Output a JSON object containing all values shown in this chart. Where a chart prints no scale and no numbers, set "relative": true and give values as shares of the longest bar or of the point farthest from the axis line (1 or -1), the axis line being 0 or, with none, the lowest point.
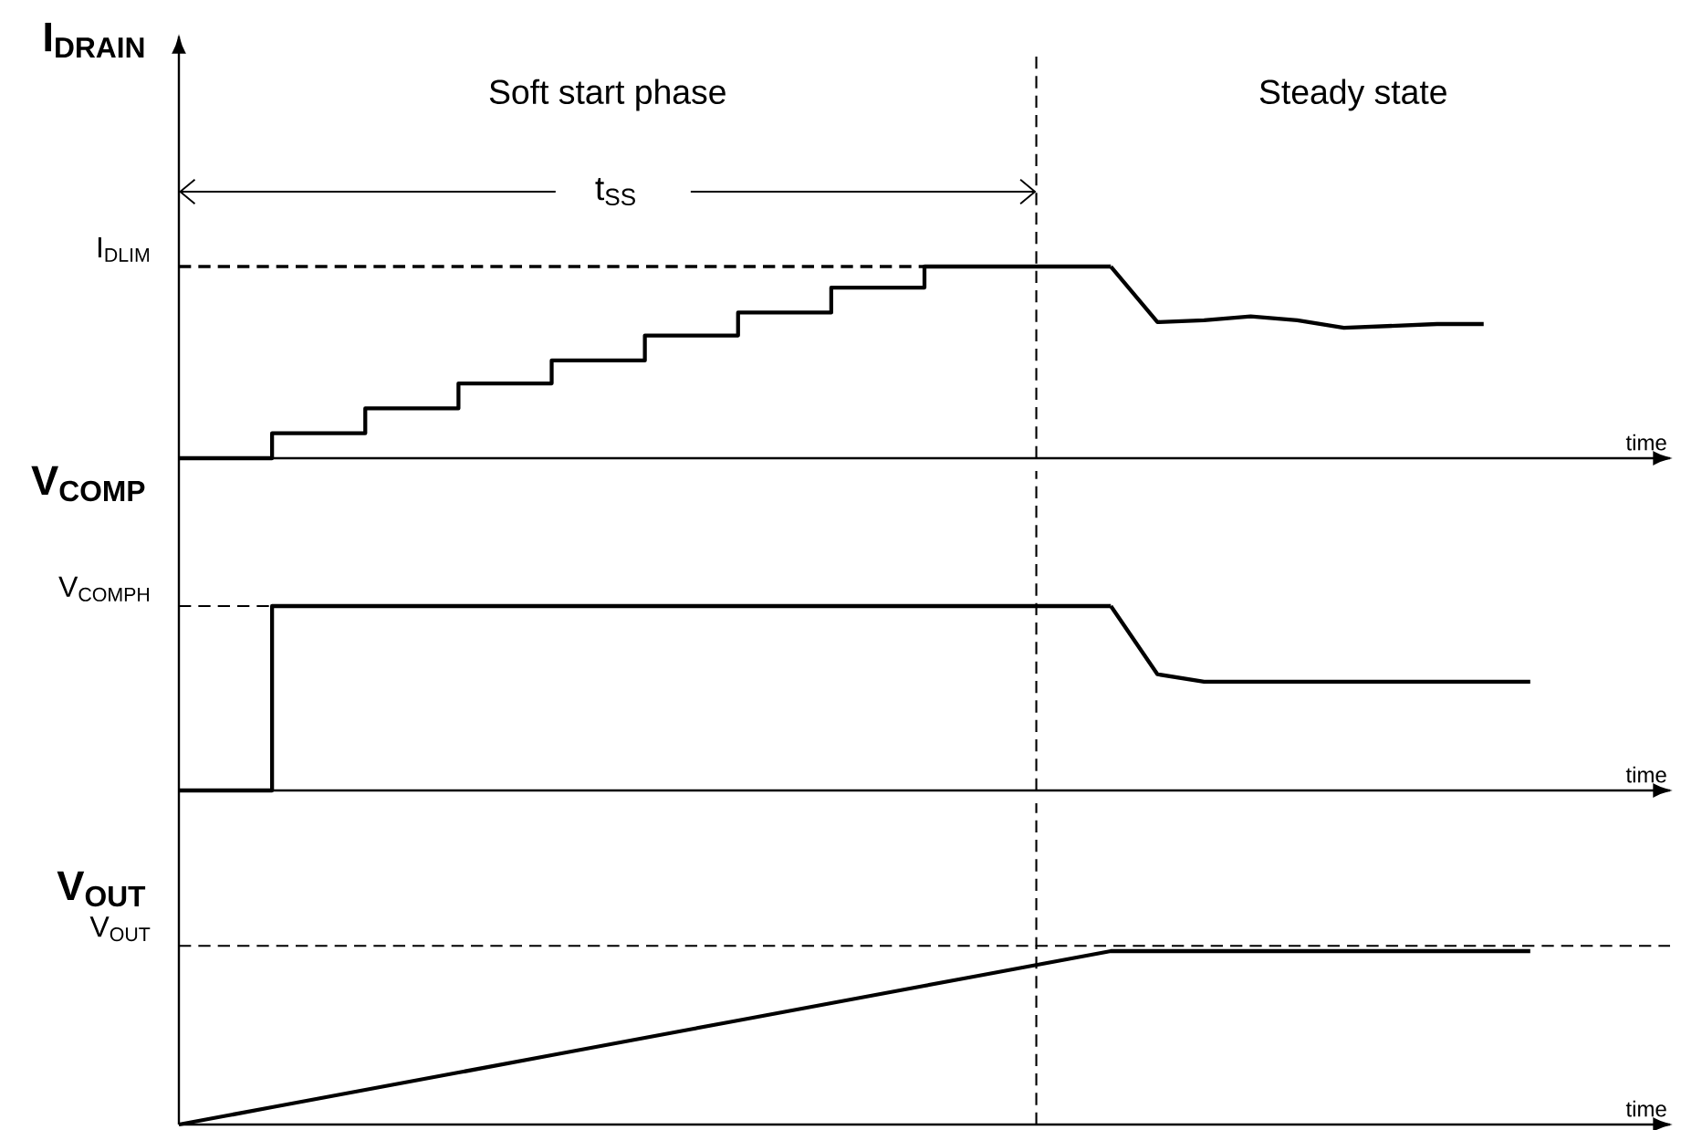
{
  "chart_data": [
    {
      "type": "line",
      "relative": true,
      "ylabel": "I$_{DRAIN}$",
      "xlabel": "time",
      "categories": [
        null,
        null,
        null,
        null,
        null,
        null,
        null,
        null,
        null,
        null,
        null,
        null,
        null,
        null,
        null,
        null,
        null,
        null,
        null,
        null,
        null,
        null,
        null,
        null,
        null,
        null,
        null,
        null,
        null,
        null,
        null,
        null,
        null
      ],
      "annotations": [
        "Soft start phase",
        "Steady state",
        "t$_{SS}$"
      ],
      "ref_lines": [
        {
          "axis": "y",
          "value": 1,
          "label": "I$_{DLIM}$",
          "color": "#000000",
          "line_style": "dashed"
        }
      ],
      "series": [
        {
          "type": "step",
          "color": "#000000",
          "values": [
            0,
            0,
            0.13,
            0.13,
            0.26,
            0.26,
            0.39,
            0.39,
            0.51,
            0.51,
            0.64,
            0.64,
            0.76,
            0.76,
            0.89,
            0.89,
            1,
            1,
            1,
            1,
            1,
            null,
            null,
            null,
            null,
            null,
            null,
            null,
            null,
            null,
            null,
            null,
            null
          ]
        },
        {
          "color": "#000000",
          "values": [
            null,
            null,
            null,
            null,
            null,
            null,
            null,
            null,
            null,
            null,
            null,
            null,
            null,
            null,
            null,
            null,
            null,
            null,
            null,
            null,
            1,
            0.71,
            0.72,
            0.74,
            0.72,
            0.68,
            0.69,
            0.7,
            0.7,
            null,
            null,
            null,
            null
          ]
        }
      ]
    },
    {
      "type": "line",
      "relative": true,
      "ylabel": "V$_{COMP}$",
      "xlabel": "time",
      "categories": [
        null,
        null,
        null,
        null,
        null,
        null,
        null,
        null,
        null,
        null,
        null,
        null,
        null,
        null,
        null,
        null,
        null,
        null,
        null,
        null,
        null,
        null,
        null,
        null,
        null,
        null,
        null,
        null,
        null,
        null,
        null,
        null,
        null
      ],
      "ref_lines": [
        {
          "axis": "y",
          "value": 1,
          "label": "V$_{COMPH}$",
          "color": "#000000",
          "line_style": "dashed"
        }
      ],
      "series": [
        {
          "type": "step",
          "color": "#000000",
          "values": [
            0,
            0,
            1,
            1,
            1,
            1,
            1,
            1,
            1,
            1,
            1,
            1,
            1,
            1,
            1,
            1,
            1,
            1,
            1,
            1,
            1,
            null,
            null,
            null,
            null,
            null,
            null,
            null,
            null,
            null,
            null,
            null,
            null
          ]
        },
        {
          "color": "#000000",
          "values": [
            null,
            null,
            null,
            null,
            null,
            null,
            null,
            null,
            null,
            null,
            null,
            null,
            null,
            null,
            null,
            null,
            null,
            null,
            null,
            null,
            1,
            0.63,
            0.59,
            0.59,
            0.59,
            0.59,
            0.59,
            0.59,
            0.59,
            0.59,
            null,
            null,
            null
          ]
        }
      ]
    },
    {
      "type": "line",
      "relative": true,
      "ylabel": "V$_{OUT}$",
      "xlabel": "time",
      "categories": [
        null,
        null,
        null,
        null,
        null,
        null,
        null,
        null,
        null,
        null,
        null,
        null,
        null,
        null,
        null,
        null,
        null,
        null,
        null,
        null,
        null,
        null,
        null,
        null,
        null,
        null,
        null,
        null,
        null,
        null,
        null,
        null,
        null
      ],
      "ref_lines": [
        {
          "axis": "y",
          "value": 1.03,
          "label": "V$_{OUT}$",
          "color": "#000000",
          "line_style": "dashed"
        }
      ],
      "series": [
        {
          "color": "#000000",
          "values": [
            0,
            0.05,
            0.1,
            0.15,
            0.2,
            0.25,
            0.3,
            0.35,
            0.4,
            0.45,
            0.5,
            0.55,
            0.6,
            0.65,
            0.7,
            0.75,
            0.8,
            0.85,
            0.9,
            0.95,
            1,
            1,
            1,
            1,
            1,
            1,
            1,
            1,
            1,
            1,
            null,
            null,
            null
          ]
        }
      ]
    }
  ]
}
